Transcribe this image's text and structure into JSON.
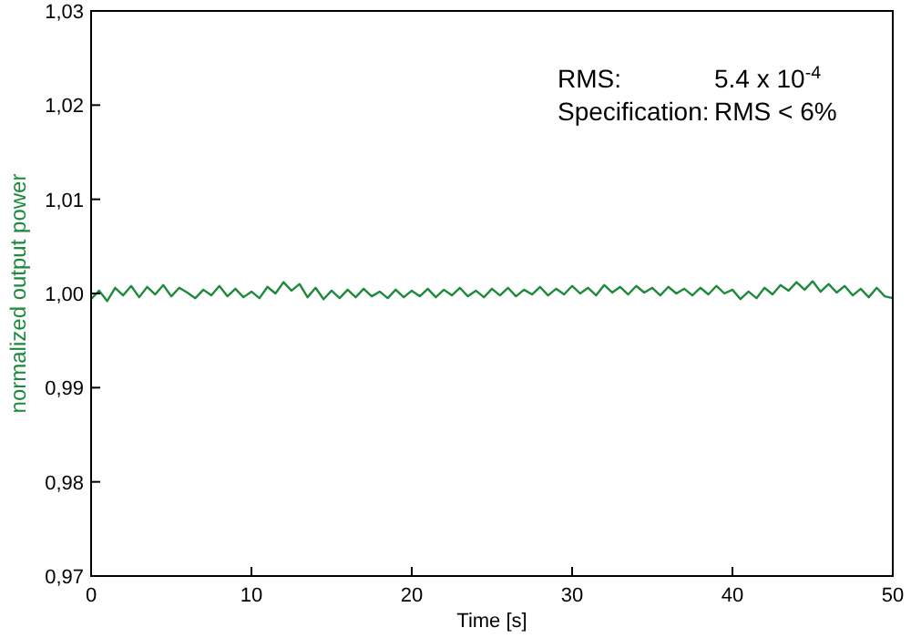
{
  "chart_data": {
    "type": "line",
    "xlabel": "Time [s]",
    "ylabel": "normalized output power",
    "xlim": [
      0,
      50
    ],
    "ylim": [
      0.97,
      1.03
    ],
    "xticks": [
      0,
      10,
      20,
      30,
      40,
      50
    ],
    "yticks": [
      {
        "value": 0.97,
        "label": "0,97"
      },
      {
        "value": 0.98,
        "label": "0,98"
      },
      {
        "value": 0.99,
        "label": "0,99"
      },
      {
        "value": 1.0,
        "label": "1,00"
      },
      {
        "value": 1.01,
        "label": "1,01"
      },
      {
        "value": 1.02,
        "label": "1,02"
      },
      {
        "value": 1.03,
        "label": "1,03"
      }
    ],
    "grid": false,
    "line_style": "solid",
    "annotations": [
      "RMS:",
      "5.4 x 10$^{-4}$",
      "Specification:",
      "RMS < 6%"
    ],
    "series": [
      {
        "color": "#1e8a3c",
        "x": [
          0,
          0.5,
          1,
          1.5,
          2,
          2.5,
          3,
          3.5,
          4,
          4.5,
          5,
          5.5,
          6,
          6.5,
          7,
          7.5,
          8,
          8.5,
          9,
          9.5,
          10,
          10.5,
          11,
          11.5,
          12,
          12.5,
          13,
          13.5,
          14,
          14.5,
          15,
          15.5,
          16,
          16.5,
          17,
          17.5,
          18,
          18.5,
          19,
          19.5,
          20,
          20.5,
          21,
          21.5,
          22,
          22.5,
          23,
          23.5,
          24,
          24.5,
          25,
          25.5,
          26,
          26.5,
          27,
          27.5,
          28,
          28.5,
          29,
          29.5,
          30,
          30.5,
          31,
          31.5,
          32,
          32.5,
          33,
          33.5,
          34,
          34.5,
          35,
          35.5,
          36,
          36.5,
          37,
          37.5,
          38,
          38.5,
          39,
          39.5,
          40,
          40.5,
          41,
          41.5,
          42,
          42.5,
          43,
          43.5,
          44,
          44.5,
          45,
          45.5,
          46,
          46.5,
          47,
          47.5,
          48,
          48.5,
          49,
          49.5,
          50
        ],
        "values": [
          0.9994,
          1.0003,
          0.9992,
          1.0006,
          0.9998,
          1.0008,
          0.9996,
          1.0007,
          0.9999,
          1.0009,
          0.9997,
          1.0006,
          1.0001,
          0.9995,
          1.0004,
          0.9998,
          1.0008,
          0.9997,
          1.0005,
          0.9996,
          1.0002,
          0.9995,
          1.0007,
          1.0,
          1.0012,
          1.0003,
          1.001,
          0.9996,
          1.0006,
          0.9994,
          1.0003,
          0.9995,
          1.0004,
          0.9996,
          1.0005,
          0.9997,
          1.0002,
          0.9995,
          1.0004,
          0.9996,
          1.0003,
          0.9997,
          1.0005,
          0.9996,
          1.0004,
          0.9998,
          1.0006,
          0.9997,
          1.0003,
          0.9996,
          1.0005,
          0.9998,
          1.0006,
          0.9997,
          1.0004,
          0.9999,
          1.0007,
          0.9998,
          1.0005,
          0.9999,
          1.0008,
          1.0,
          1.0006,
          0.9998,
          1.0009,
          1.0001,
          1.0007,
          0.9999,
          1.0008,
          1.0001,
          1.0006,
          0.9998,
          1.0007,
          1.0,
          1.0005,
          0.9998,
          1.0006,
          0.9999,
          1.0008,
          1.0,
          1.0004,
          0.9994,
          1.0002,
          0.9995,
          1.0006,
          0.9999,
          1.0009,
          1.0003,
          1.0012,
          1.0004,
          1.0013,
          1.0002,
          1.001,
          1.0001,
          1.0008,
          0.9998,
          1.0005,
          0.9996,
          1.0006,
          0.9997,
          0.9995
        ]
      }
    ]
  }
}
